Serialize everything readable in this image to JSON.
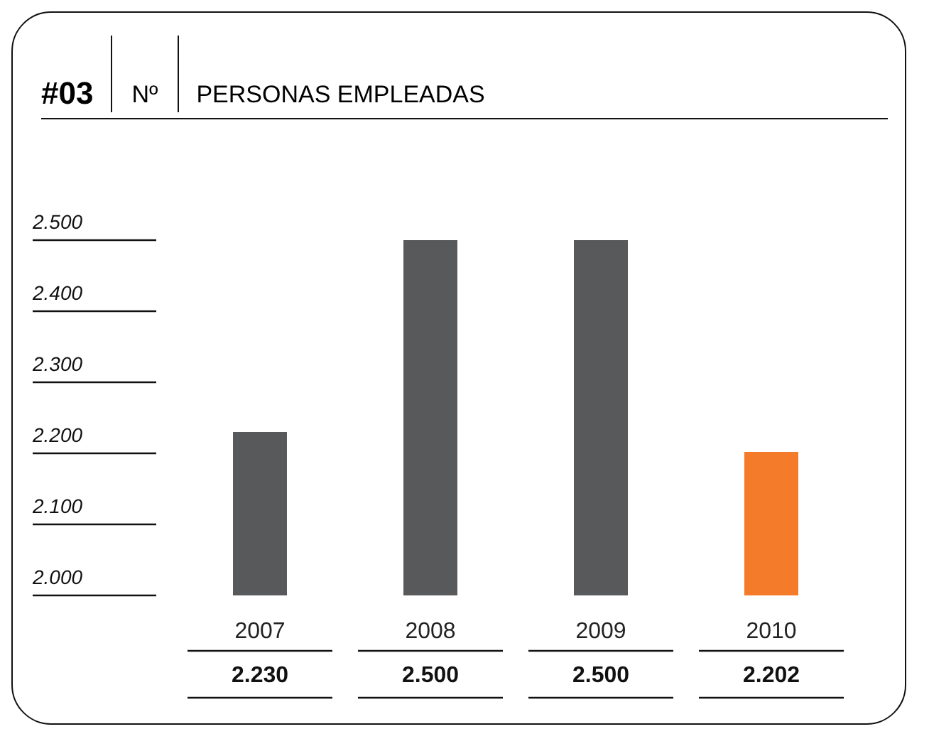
{
  "chart_data": {
    "type": "bar",
    "title": "PERSONAS EMPLEADAS",
    "ylabel": "Nº",
    "annotations": [
      "#03"
    ],
    "categories": [
      "2007",
      "2008",
      "2009",
      "2010"
    ],
    "values": [
      2230,
      2500,
      2500,
      2202
    ],
    "value_labels": [
      "2.230",
      "2.500",
      "2.500",
      "2.202"
    ],
    "colors": [
      "#58595b",
      "#58595b",
      "#58595b",
      "#f47b2a"
    ],
    "ylim": [
      2000,
      2500
    ],
    "yticks": [
      {
        "value": 2000,
        "label": "2.000"
      },
      {
        "value": 2100,
        "label": "2.100"
      },
      {
        "value": 2200,
        "label": "2.200"
      },
      {
        "value": 2300,
        "label": "2.300"
      },
      {
        "value": 2400,
        "label": "2.400"
      },
      {
        "value": 2500,
        "label": "2.500"
      }
    ],
    "legend": false
  }
}
